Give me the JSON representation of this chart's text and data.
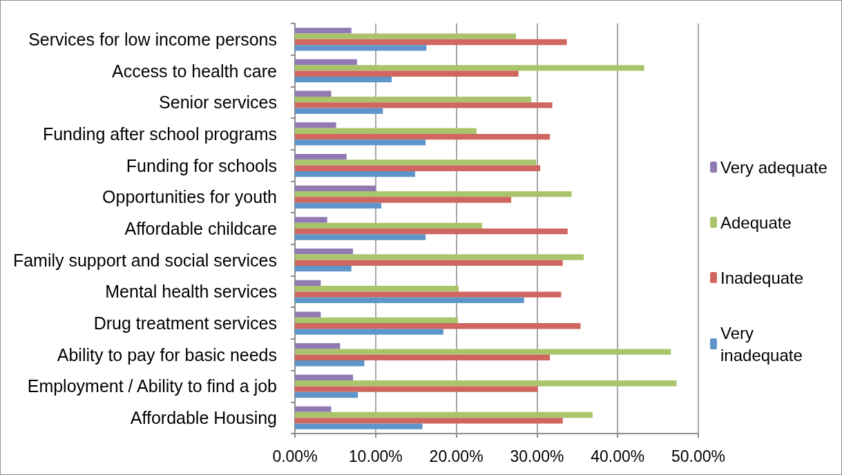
{
  "chart_data": {
    "type": "bar",
    "orientation": "horizontal",
    "categories": [
      "Services for low income persons",
      "Access to health care",
      "Senior services",
      "Funding after school programs",
      "Funding for schools",
      "Opportunities for youth",
      "Affordable childcare",
      "Family support and social services",
      "Mental health services",
      "Drug treatment services",
      "Ability to pay for basic needs",
      "Employment / Ability to find a job",
      "Affordable Housing"
    ],
    "series": [
      {
        "name": "Very adequate",
        "color": "#917ab3",
        "values": [
          7.0,
          7.7,
          4.5,
          5.1,
          6.4,
          10.0,
          4.0,
          7.2,
          3.2,
          3.2,
          5.6,
          7.2,
          4.5
        ]
      },
      {
        "name": "Adequate",
        "color": "#aac46c",
        "values": [
          27.4,
          43.3,
          29.3,
          22.5,
          29.9,
          34.3,
          23.2,
          35.8,
          20.3,
          20.2,
          46.6,
          47.3,
          36.9
        ]
      },
      {
        "name": "Inadequate",
        "color": "#cf665f",
        "values": [
          33.7,
          27.7,
          31.9,
          31.6,
          30.4,
          26.8,
          33.8,
          33.2,
          33.0,
          35.4,
          31.6,
          30.1,
          33.2
        ]
      },
      {
        "name": "Very inadequate",
        "color": "#5f96c9",
        "values": [
          16.3,
          12.0,
          10.9,
          16.2,
          14.9,
          10.7,
          16.2,
          7.0,
          28.4,
          18.4,
          8.6,
          7.8,
          15.8
        ]
      }
    ],
    "xlim": [
      0,
      50
    ],
    "xticks": [
      {
        "value": 0,
        "label": "0.00%"
      },
      {
        "value": 10,
        "label": "10.00%"
      },
      {
        "value": 20,
        "label": "20.00%"
      },
      {
        "value": 30,
        "label": "30.00%"
      },
      {
        "value": 40,
        "label": "40.00%"
      },
      {
        "value": 50,
        "label": "50.00%"
      }
    ],
    "grid": "x",
    "legend": "right"
  }
}
